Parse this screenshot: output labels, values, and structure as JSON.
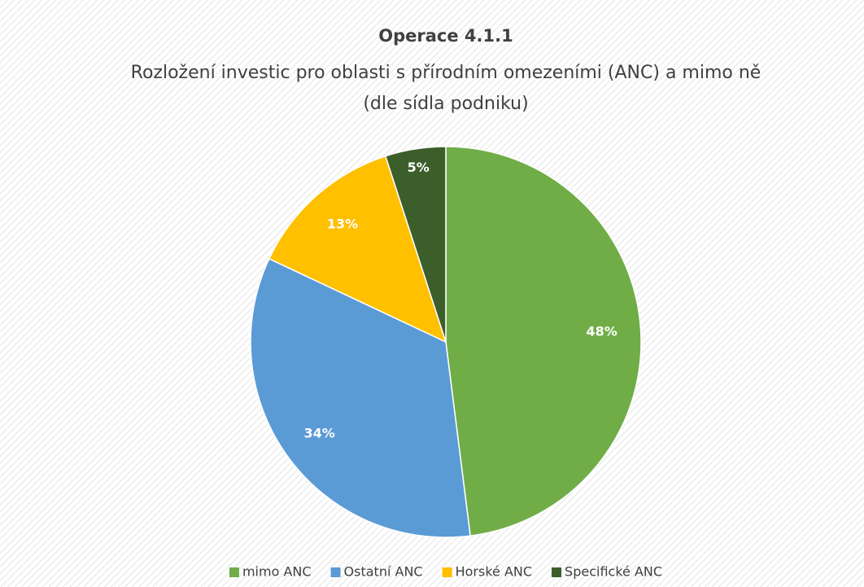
{
  "chart_data": {
    "type": "pie",
    "title": "Operace 4.1.1",
    "subtitle": [
      "Rozložení investic pro oblasti s přírodním omezeními (ANC) a mimo ně",
      "(dle sídla podniku)"
    ],
    "categories": [
      "mimo ANC",
      "Ostatní ANC",
      "Horské ANC",
      "Specifické ANC"
    ],
    "values": [
      48,
      34,
      13,
      5
    ],
    "value_labels": [
      "48%",
      "34%",
      "13%",
      "5%"
    ],
    "colors": [
      "#70ad47",
      "#5b9bd5",
      "#ffc000",
      "#3b5e2b"
    ],
    "legend": "bottom"
  }
}
